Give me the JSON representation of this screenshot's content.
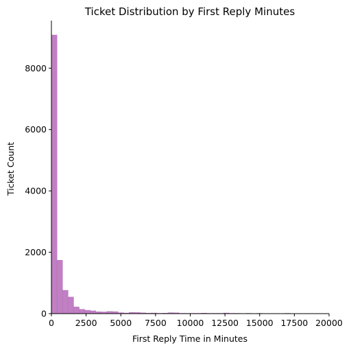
{
  "chart_data": {
    "type": "bar",
    "subtype": "histogram",
    "title": "Ticket Distribution by First Reply Minutes",
    "xlabel": "First Reply Time in Minutes",
    "ylabel": "Ticket Count",
    "xlim": [
      0,
      20000
    ],
    "ylim": [
      0,
      9550
    ],
    "x_ticks": [
      0,
      2500,
      5000,
      7500,
      10000,
      12500,
      15000,
      17500,
      20000
    ],
    "y_ticks": [
      0,
      2000,
      4000,
      6000,
      8000
    ],
    "grid": false,
    "legend": "none",
    "color": "#c17fc4",
    "edge_color": "#b070b4",
    "bins": {
      "start": 0,
      "width": 400,
      "counts": [
        9080,
        1740,
        760,
        540,
        220,
        140,
        110,
        90,
        60,
        55,
        70,
        65,
        30,
        20,
        40,
        35,
        25,
        15,
        20,
        10,
        15,
        30,
        25,
        10,
        10,
        10,
        10,
        15,
        10,
        10,
        10,
        20,
        10,
        10,
        5,
        10,
        5,
        10,
        5,
        5,
        5,
        5,
        10,
        5,
        5,
        5,
        5,
        5
      ]
    }
  }
}
